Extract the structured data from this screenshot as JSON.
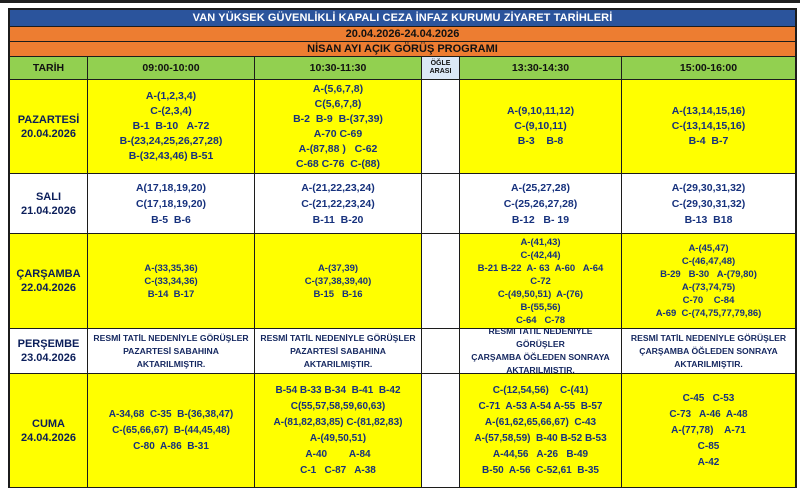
{
  "header": {
    "title": "VAN YÜKSEK GÜVENLİKLİ KAPALI CEZA İNFAZ KURUMU ZİYARET TARİHLERİ",
    "date_range": "20.04.2026-24.04.2026",
    "program_title": "NİSAN AYI AÇIK GÖRÜŞ PROGRAMI"
  },
  "columns": {
    "date_header": "TARİH",
    "time_slots": [
      "09:00-10:00",
      "10:30-11:30",
      "ÖĞLE ARASI",
      "13:30-14:30",
      "15:00-16:00"
    ]
  },
  "colors": {
    "title_bg": "#2b549c",
    "title_text": "#ffffff",
    "band_bg": "#ed7d31",
    "header_bg": "#92d050",
    "highlight_bg": "#ffff00",
    "lunch_header_bg": "#dbe8f6",
    "grid_line": "#1c1c1c",
    "day_text": "#0b1e5a",
    "value_text": "#16317d"
  },
  "rows": [
    {
      "day": "PAZARTESİ",
      "date": "20.04.2026",
      "highlight": true,
      "note": false,
      "slots": [
        [
          "A-(1,2,3,4)",
          "C-(2,3,4)",
          "B-1  B-10   A-72",
          "B-(23,24,25,26,27,28)",
          "B-(32,43,46) B-51"
        ],
        [
          "A-(5,6,7,8)",
          "C(5,6,7,8)",
          "B-2  B-9  B-(37,39)",
          "A-70 C-69",
          "A-(87,88 )   C-62",
          "C-68 C-76  C-(88)"
        ],
        [
          "A-(9,10,11,12)",
          "C-(9,10,11)",
          "B-3    B-8"
        ],
        [
          "A-(13,14,15,16)",
          "C-(13,14,15,16)",
          "B-4  B-7"
        ]
      ]
    },
    {
      "day": "SALI",
      "date": "21.04.2026",
      "highlight": false,
      "note": false,
      "slots": [
        [
          "A(17,18,19,20)",
          "C(17,18,19,20)",
          "B-5  B-6"
        ],
        [
          "A-(21,22,23,24)",
          "C-(21,22,23,24)",
          "B-11  B-20"
        ],
        [
          "A-(25,27,28)",
          "C-(25,26,27,28)",
          "B-12   B- 19"
        ],
        [
          "A-(29,30,31,32)",
          "C-(29,30,31,32)",
          "B-13  B18"
        ]
      ]
    },
    {
      "day": "ÇARŞAMBA",
      "date": "22.04.2026",
      "highlight": true,
      "note": false,
      "slots": [
        [
          "A-(33,35,36)",
          "C-(33,34,36)",
          "B-14  B-17"
        ],
        [
          "A-(37,39)",
          "C-(37,38,39,40)",
          "B-15   B-16"
        ],
        [
          "A-(41,43)",
          "C-(42,44)",
          "B-21 B-22  A- 63  A-60   A-64",
          "C-72",
          "C-(49,50,51)  A-(76)",
          "B-(55,56)",
          "C-64   C-78"
        ],
        [
          "A-(45,47)",
          "C-(46,47,48)",
          "B-29   B-30   A-(79,80)",
          "A-(73,74,75)",
          "C-70    C-84",
          "A-69  C-(74,75,77,79,86)"
        ]
      ]
    },
    {
      "day": "PERŞEMBE",
      "date": "23.04.2026",
      "highlight": false,
      "note": true,
      "slots": [
        [
          "RESMİ TATİL NEDENİYLE GÖRÜŞLER",
          "PAZARTESİ SABAHINA AKTARILMIŞTIR."
        ],
        [
          "RESMİ TATİL NEDENİYLE GÖRÜŞLER",
          "PAZARTESİ SABAHINA AKTARILMIŞTIR."
        ],
        [
          "RESMİ TATİL NEDENİYLE GÖRÜŞLER",
          "ÇARŞAMBA ÖĞLEDEN SONRAYA",
          "AKTARILMIŞTIR."
        ],
        [
          "RESMİ TATİL NEDENİYLE GÖRÜŞLER",
          "ÇARŞAMBA ÖĞLEDEN SONRAYA",
          "AKTARILMIŞTIR."
        ]
      ]
    },
    {
      "day": "CUMA",
      "date": "24.04.2026",
      "highlight": true,
      "note": false,
      "slots": [
        [
          "A-34,68  C-35  B-(36,38,47)",
          "C-(65,66,67)  B-(44,45,48)",
          "C-80  A-86  B-31"
        ],
        [
          "B-54 B-33 B-34  B-41  B-42",
          "C(55,57,58,59,60,63)",
          "A-(81,82,83,85) C-(81,82,83)",
          "A-(49,50,51)",
          "A-40        A-84",
          "C-1   C-87   A-38"
        ],
        [
          "C-(12,54,56)    C-(41)",
          "C-71  A-53 A-54 A-55  B-57",
          "A-(61,62,65,66,67)  C-43",
          "A-(57,58,59)  B-40 B-52 B-53",
          "A-44,56   A-26   B-49",
          "B-50  A-56  C-52,61  B-35"
        ],
        [
          "C-45   C-53",
          "C-73   A-46  A-48",
          "A-(77,78)    A-71",
          "C-85",
          "A-42"
        ]
      ]
    }
  ]
}
